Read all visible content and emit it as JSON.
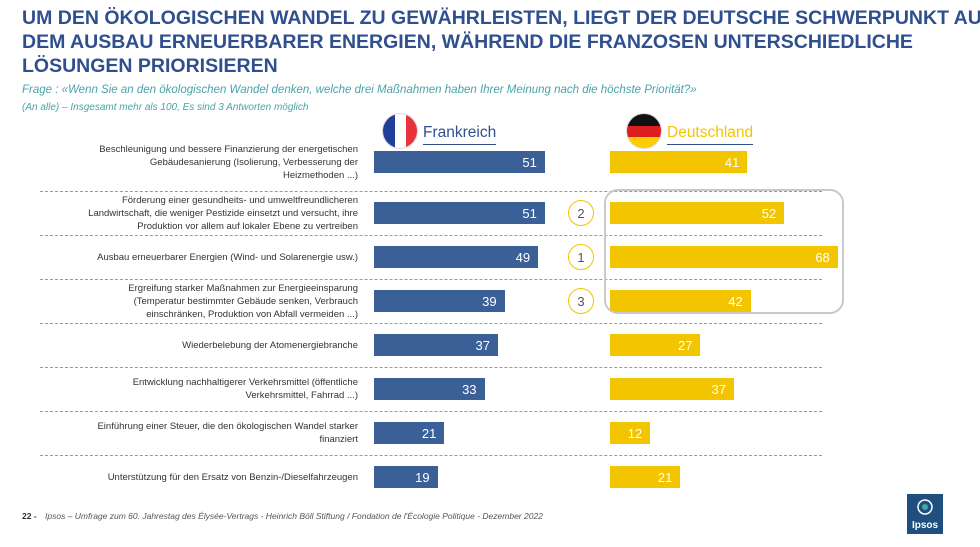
{
  "header": {
    "title_lines": [
      "UM DEN ÖKOLOGISCHEN WANDEL ZU GEWÄHRLEISTEN, LIEGT DER DEUTSCHE SCHWERPUNKT AUF",
      "DEM AUSBAU ERNEUERBARER ENERGIEN, WÄHREND DIE FRANZOSEN UNTERSCHIEDLICHE",
      "LÖSUNGEN PRIORISIEREN"
    ],
    "question": "Frage : «Wenn Sie an den ökologischen Wandel denken, welche drei Maßnahmen haben Ihrer Meinung nach die höchste Priorität?»",
    "subnote": "(An alle) – Insgesamt mehr als 100, Es sind 3 Antworten möglich"
  },
  "countries": {
    "france": "Frankreich",
    "germany": "Deutschland"
  },
  "colors": {
    "france": "#3b5f97",
    "germany": "#f2c500",
    "title": "#2f4f8f"
  },
  "chart_data": {
    "type": "bar",
    "orientation": "horizontal",
    "title": "UM DEN ÖKOLOGISCHEN WANDEL ZU GEWÄHRLEISTEN, LIEGT DER DEUTSCHE SCHWERPUNKT AUF DEM AUSBAU ERNEUERBARER ENERGIEN, WÄHREND DIE FRANZOSEN UNTERSCHIEDLICHE LÖSUNGEN PRIORISIEREN",
    "categories": [
      [
        "Beschleunigung und bessere Finanzierung der energetischen",
        "Gebäudesanierung (Isolierung, Verbesserung der",
        "Heizmethoden ...)"
      ],
      [
        "Förderung einer gesundheits- und umweltfreundlicheren",
        "Landwirtschaft, die weniger Pestizide einsetzt und versucht, ihre",
        "Produktion vor allem auf lokaler Ebene zu vertreiben"
      ],
      [
        "Ausbau erneuerbarer Energien (Wind- und Solarenergie usw.)"
      ],
      [
        "Ergreifung starker Maßnahmen zur Energieeinsparung",
        "(Temperatur bestimmter Gebäude senken, Verbrauch",
        "einschränken, Produktion von Abfall vermeiden ...)"
      ],
      [
        "Wiederbelebung der Atomenergiebranche"
      ],
      [
        "Entwicklung nachhaltigerer Verkehrsmittel (öffentliche",
        "Verkehrsmittel, Fahrrad ...)"
      ],
      [
        "Einführung einer Steuer, die den ökologischen Wandel starker",
        "finanziert"
      ],
      [
        "Unterstützung für den Ersatz von Benzin-/Dieselfahrzeugen"
      ]
    ],
    "series": [
      {
        "name": "Frankreich",
        "values": [
          51,
          51,
          49,
          39,
          37,
          33,
          21,
          19
        ]
      },
      {
        "name": "Deutschland",
        "values": [
          41,
          52,
          68,
          42,
          27,
          37,
          12,
          21
        ]
      }
    ],
    "germany_ranks": [
      {
        "row": 1,
        "rank": "2"
      },
      {
        "row": 2,
        "rank": "1"
      },
      {
        "row": 3,
        "rank": "3"
      }
    ],
    "xlim": [
      0,
      100
    ]
  },
  "footer": {
    "page": "22 -",
    "source": "Ipsos – Umfrage zum 60. Jahrestag des Élysée-Vertrags - Heinrich Böll Stiftung / Fondation de l'Écologie Politique - Dezember 2022",
    "logo": "Ipsos"
  }
}
